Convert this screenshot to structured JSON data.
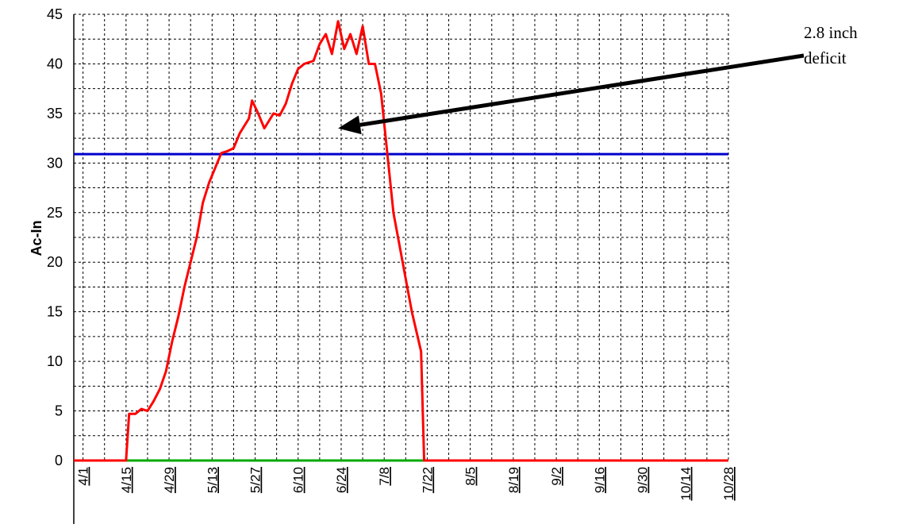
{
  "chart_data": {
    "type": "line",
    "y_label": "Ac-In",
    "xlim": [
      "3/29",
      "10/28"
    ],
    "xticks": [
      "4/1",
      "4/15",
      "4/29",
      "5/13",
      "5/27",
      "6/10",
      "6/24",
      "7/8",
      "7/22",
      "8/5",
      "8/19",
      "9/2",
      "9/16",
      "9/30",
      "10/14",
      "10/28"
    ],
    "ylim": [
      0,
      45
    ],
    "yticks": [
      0,
      5,
      10,
      15,
      20,
      25,
      30,
      35,
      40,
      45
    ],
    "grid": true,
    "series": [
      {
        "color": "#ff0000",
        "x": [
          "3/29",
          "4/15",
          "4/16",
          "4/18",
          "4/20",
          "4/22",
          "4/24",
          "4/26",
          "4/28",
          "4/30",
          "5/2",
          "5/4",
          "5/6",
          "5/8",
          "5/10",
          "5/12",
          "5/14",
          "5/16",
          "5/18",
          "5/20",
          "5/22",
          "5/25",
          "5/26",
          "5/28",
          "5/30",
          "6/2",
          "6/4",
          "6/6",
          "6/8",
          "6/10",
          "6/12",
          "6/15",
          "6/17",
          "6/19",
          "6/21",
          "6/23",
          "6/25",
          "6/27",
          "6/29",
          "7/1",
          "7/3",
          "7/5",
          "7/7",
          "7/9",
          "7/11",
          "7/14",
          "7/17",
          "7/20",
          "7/21",
          "10/28"
        ],
        "values": [
          0,
          0,
          4.7,
          4.7,
          5.2,
          5.0,
          6.0,
          7.2,
          9,
          12,
          14.5,
          17.5,
          20,
          22.5,
          26,
          28,
          29.5,
          31,
          31.2,
          31.5,
          33,
          34.5,
          36.3,
          35,
          33.5,
          35,
          34.8,
          36,
          38,
          39.5,
          40,
          40.3,
          42,
          43,
          41,
          44.3,
          41.5,
          43,
          41,
          43.8,
          40,
          40,
          37,
          31,
          25,
          20,
          15,
          11,
          0,
          0
        ]
      },
      {
        "color": "#0000cc",
        "x": [
          "3/29",
          "10/28"
        ],
        "values": [
          30.9,
          30.9
        ]
      },
      {
        "color": "#00aa00",
        "x": [
          "3/29",
          "10/28"
        ],
        "values": [
          0,
          0
        ]
      }
    ],
    "annotation": {
      "lines": [
        "2.8 inch",
        "deficit"
      ],
      "target": [
        "6/23",
        33.5
      ]
    }
  }
}
